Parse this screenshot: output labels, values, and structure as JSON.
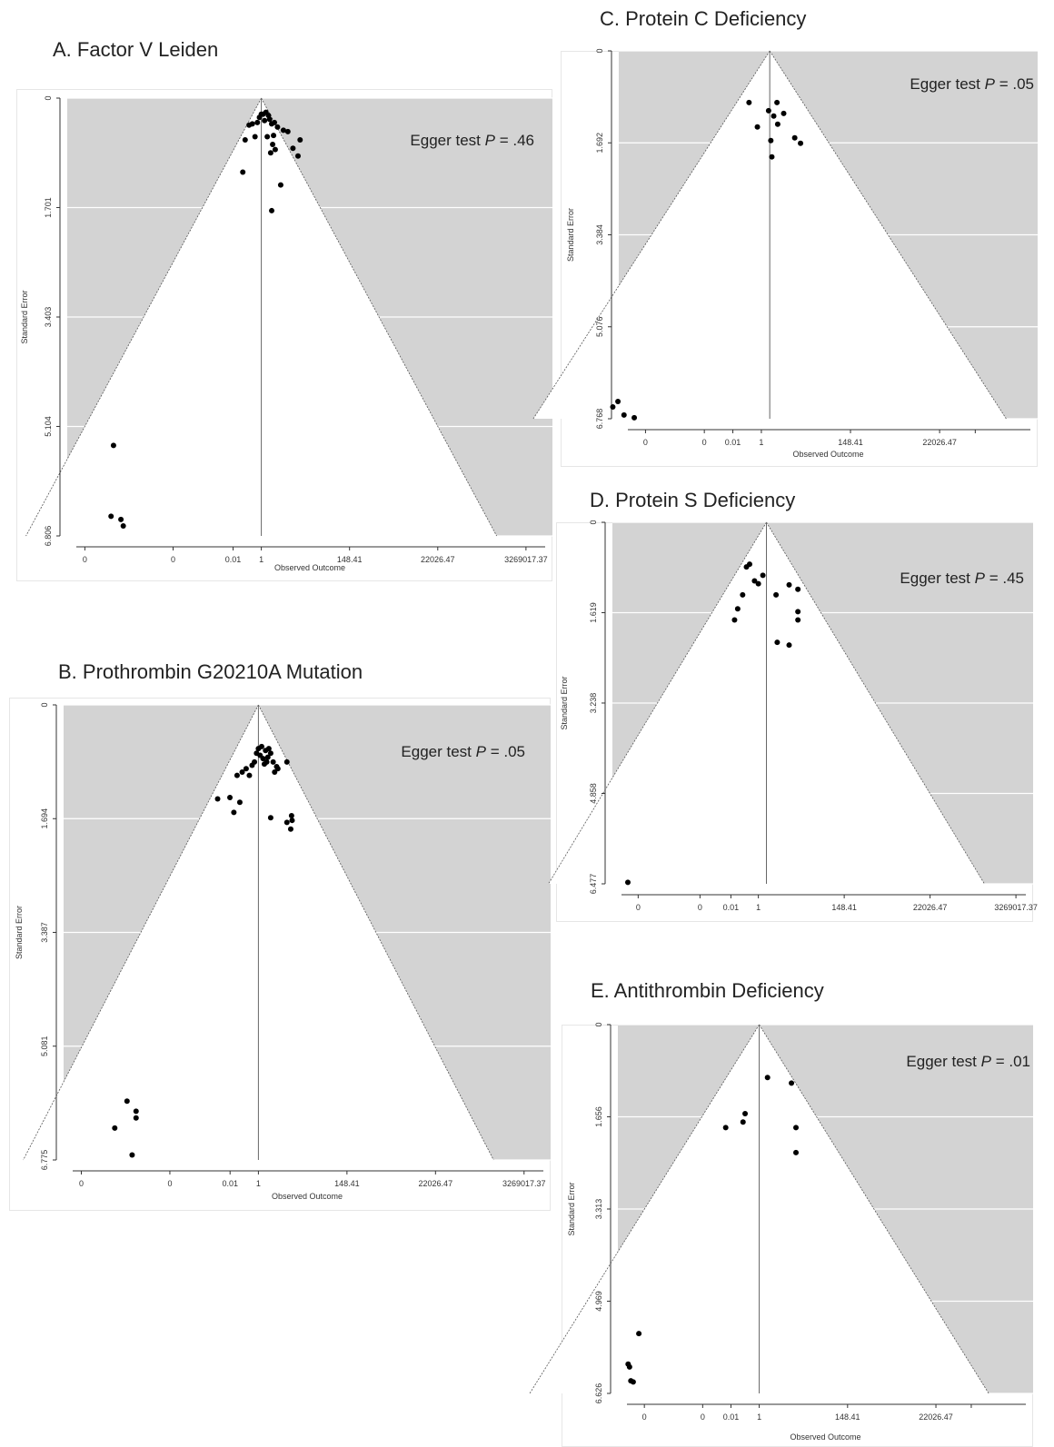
{
  "panels": [
    {
      "title": "A. Factor V Leiden",
      "egger_prefix": "Egger test",
      "egger_p": "P",
      "egger_value": " = .46"
    },
    {
      "title": "B. Prothrombin G20210A Mutation",
      "egger_prefix": "Egger test",
      "egger_p": "P",
      "egger_value": " = .05"
    },
    {
      "title": "C. Protein C Deficiency",
      "egger_prefix": "Egger test",
      "egger_p": "P",
      "egger_value": " = .05"
    },
    {
      "title": "D. Protein S Deficiency",
      "egger_prefix": "Egger test",
      "egger_p": "P",
      "egger_value": " = .45"
    },
    {
      "title": "E. Antithrombin Deficiency",
      "egger_prefix": "Egger test",
      "egger_p": "P",
      "egger_value": " = .01"
    }
  ],
  "colors": {
    "funnel_outside": "#d3d3d3",
    "funnel_inside": "#ffffff",
    "points": "#000000",
    "gridline": "#ffffff"
  },
  "chart_data": [
    {
      "type": "scatter",
      "title": "A. Factor V Leiden",
      "xlabel": "Observed Outcome",
      "ylabel": "Standard Error",
      "x_scale": "log",
      "x_tick_labels": [
        "0",
        "0",
        "0.01",
        "1",
        "148.41",
        "22026.47",
        "3269017.37"
      ],
      "y_ticks": [
        0,
        1.701,
        3.403,
        5.104,
        6.806
      ],
      "y_tick_labels": [
        "0",
        "1.701",
        "3.403",
        "5.104",
        "6.806"
      ],
      "ylim": [
        0,
        6.806
      ],
      "center": 1,
      "points": [
        [
          1,
          0.25
        ],
        [
          1.1,
          0.25
        ],
        [
          1.3,
          0.22
        ],
        [
          1.5,
          0.27
        ],
        [
          0.9,
          0.3
        ],
        [
          1.6,
          0.33
        ],
        [
          1.2,
          0.35
        ],
        [
          0.8,
          0.38
        ],
        [
          0.6,
          0.4
        ],
        [
          1.8,
          0.4
        ],
        [
          2.1,
          0.38
        ],
        [
          0.5,
          0.42
        ],
        [
          2.5,
          0.45
        ],
        [
          3.5,
          0.5
        ],
        [
          4.5,
          0.52
        ],
        [
          0.4,
          0.65
        ],
        [
          0.7,
          0.6
        ],
        [
          1.4,
          0.6
        ],
        [
          2,
          0.58
        ],
        [
          1.9,
          0.72
        ],
        [
          2.2,
          0.8
        ],
        [
          1.7,
          0.85
        ],
        [
          8,
          0.9
        ],
        [
          6,
          0.78
        ],
        [
          9,
          0.65
        ],
        [
          0.35,
          1.15
        ],
        [
          1.8,
          1.75
        ],
        [
          3,
          1.35
        ],
        [
          0.00023,
          5.4
        ],
        [
          0.0002,
          6.5
        ],
        [
          0.00035,
          6.55
        ],
        [
          0.0004,
          6.65
        ]
      ],
      "egger": "Egger test P = .46"
    },
    {
      "type": "scatter",
      "title": "B. Prothrombin G20210A Mutation",
      "xlabel": "Observed Outcome",
      "ylabel": "Standard Error",
      "x_scale": "log",
      "x_tick_labels": [
        "0",
        "0",
        "0.01",
        "1",
        "148.41",
        "22026.47",
        "3269017.37"
      ],
      "y_ticks": [
        0,
        1.694,
        3.387,
        5.081,
        6.775
      ],
      "y_tick_labels": [
        "0",
        "1.694",
        "3.387",
        "5.081",
        "6.775"
      ],
      "ylim": [
        0,
        6.775
      ],
      "center": 1,
      "points": [
        [
          1,
          0.65
        ],
        [
          1.2,
          0.62
        ],
        [
          1.5,
          0.68
        ],
        [
          1.8,
          0.65
        ],
        [
          0.9,
          0.72
        ],
        [
          1.1,
          0.75
        ],
        [
          1.3,
          0.8
        ],
        [
          1.7,
          0.78
        ],
        [
          2,
          0.72
        ],
        [
          0.8,
          0.85
        ],
        [
          1.6,
          0.85
        ],
        [
          2.3,
          0.85
        ],
        [
          1.4,
          0.88
        ],
        [
          0.7,
          0.9
        ],
        [
          2.8,
          0.92
        ],
        [
          0.5,
          0.95
        ],
        [
          0.4,
          1
        ],
        [
          0.6,
          1.05
        ],
        [
          2.5,
          1
        ],
        [
          5,
          0.85
        ],
        [
          3,
          0.95
        ],
        [
          0.3,
          1.05
        ],
        [
          0.1,
          1.4
        ],
        [
          0.2,
          1.38
        ],
        [
          0.35,
          1.45
        ],
        [
          0.25,
          1.6
        ],
        [
          2,
          1.68
        ],
        [
          5,
          1.75
        ],
        [
          6.5,
          1.65
        ],
        [
          6.2,
          1.85
        ],
        [
          6.7,
          1.72
        ],
        [
          0.0006,
          5.9
        ],
        [
          0.001,
          6.05
        ],
        [
          0.001,
          6.15
        ],
        [
          0.0003,
          6.3
        ],
        [
          0.0008,
          6.7
        ]
      ],
      "egger": "Egger test P = .05"
    },
    {
      "type": "scatter",
      "title": "C. Protein C Deficiency",
      "xlabel": "Observed Outcome",
      "ylabel": "Standard Error",
      "x_scale": "log",
      "x_tick_labels": [
        "0",
        "0",
        "0.01",
        "1",
        "148.41",
        "22026.47",
        ""
      ],
      "y_ticks": [
        0,
        1.692,
        3.384,
        5.076,
        6.768
      ],
      "y_tick_labels": [
        "0",
        "1.692",
        "3.384",
        "5.076",
        "6.768"
      ],
      "ylim": [
        0,
        6.768
      ],
      "center": 1.6,
      "points": [
        [
          0.5,
          0.95
        ],
        [
          1.5,
          1.1
        ],
        [
          2.4,
          0.95
        ],
        [
          3.5,
          1.15
        ],
        [
          2,
          1.2
        ],
        [
          2.5,
          1.35
        ],
        [
          0.8,
          1.4
        ],
        [
          1.7,
          1.65
        ],
        [
          6.5,
          1.6
        ],
        [
          9,
          1.7
        ],
        [
          1.8,
          1.95
        ],
        [
          0.00024,
          6.55
        ],
        [
          0.00032,
          6.45
        ],
        [
          0.00045,
          6.7
        ],
        [
          0.0008,
          6.75
        ]
      ],
      "egger": "Egger test P = .05"
    },
    {
      "type": "scatter",
      "title": "D. Protein S Deficiency",
      "xlabel": "",
      "ylabel": "Standard Error",
      "x_scale": "log",
      "x_tick_labels": [
        "0",
        "0",
        "0.01",
        "1",
        "148.41",
        "22026.47",
        "3269017.37"
      ],
      "y_ticks": [
        0,
        1.619,
        3.238,
        4.858,
        6.477
      ],
      "y_tick_labels": [
        "0",
        "1.619",
        "3.238",
        "4.858",
        "6.477"
      ],
      "ylim": [
        0,
        6.477
      ],
      "center": 1.6,
      "points": [
        [
          0.6,
          0.75
        ],
        [
          0.5,
          0.8
        ],
        [
          1.3,
          0.95
        ],
        [
          0.8,
          1.05
        ],
        [
          1,
          1.1
        ],
        [
          6,
          1.12
        ],
        [
          10,
          1.2
        ],
        [
          2.8,
          1.3
        ],
        [
          0.4,
          1.3
        ],
        [
          0.3,
          1.55
        ],
        [
          10,
          1.6
        ],
        [
          10,
          1.75
        ],
        [
          0.25,
          1.75
        ],
        [
          3,
          2.15
        ],
        [
          6,
          2.2
        ],
        [
          0.0005,
          6.45
        ]
      ],
      "egger": "Egger test P = .45"
    },
    {
      "type": "scatter",
      "title": "E. Antithrombin Deficiency",
      "xlabel": "Observed Outcome",
      "ylabel": "Standard Error",
      "x_scale": "log",
      "x_tick_labels": [
        "0",
        "0",
        "0.01",
        "1",
        "148.41",
        "22026.47",
        ""
      ],
      "y_ticks": [
        0,
        1.656,
        3.313,
        4.969,
        6.626
      ],
      "y_tick_labels": [
        "0",
        "1.656",
        "3.313",
        "4.969",
        "6.626"
      ],
      "ylim": [
        0,
        6.626
      ],
      "center": 1,
      "points": [
        [
          1.6,
          0.95
        ],
        [
          6.2,
          1.05
        ],
        [
          0.45,
          1.6
        ],
        [
          0.4,
          1.75
        ],
        [
          0.15,
          1.85
        ],
        [
          8,
          1.85
        ],
        [
          8,
          2.3
        ],
        [
          0.0011,
          5.55
        ],
        [
          0.0006,
          6.1
        ],
        [
          0.00065,
          6.15
        ],
        [
          0.0007,
          6.4
        ],
        [
          0.0008,
          6.42
        ]
      ],
      "egger": "Egger test P = .01"
    }
  ]
}
